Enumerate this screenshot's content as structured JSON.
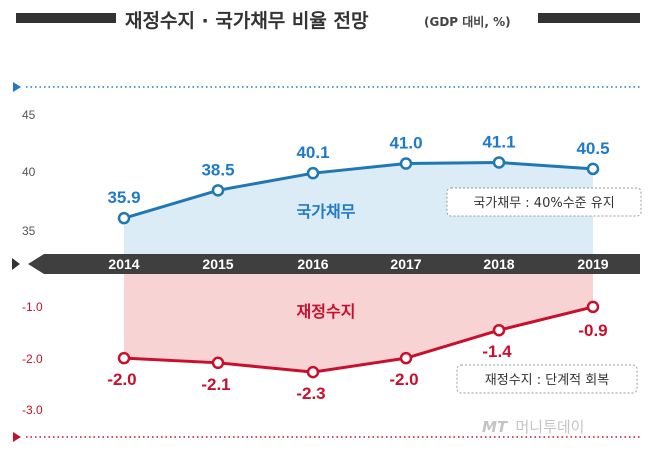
{
  "header": {
    "title": "재정수지 · 국가채무 비율 전망",
    "unit": "(GDP 대비, %)"
  },
  "watermark": {
    "brand": "MT",
    "name": "머니투데이"
  },
  "colors": {
    "debt_line": "#1f77b4",
    "debt_fill": "#dcecf7",
    "deficit_line": "#c8102e",
    "deficit_fill": "#f8d3d3",
    "band": "#3f3f3f",
    "accent_blue": "#1f7ac8",
    "accent_red": "#c8102e"
  },
  "chart_data": [
    {
      "type": "line",
      "title": "국가채무",
      "categories": [
        "2014",
        "2015",
        "2016",
        "2017",
        "2018",
        "2019"
      ],
      "values": [
        35.9,
        38.5,
        40.1,
        41.0,
        41.1,
        40.5
      ],
      "value_labels": [
        "35.9",
        "38.5",
        "40.1",
        "41.0",
        "41.1",
        "40.5"
      ],
      "y_ticks": [
        "45",
        "40",
        "35"
      ],
      "ylim": [
        33.3,
        46.0
      ],
      "note": "국가채무 : 40%수준 유지"
    },
    {
      "type": "line",
      "title": "재정수지",
      "categories": [
        "2014",
        "2015",
        "2016",
        "2017",
        "2018",
        "2019"
      ],
      "values": [
        -2.0,
        -2.1,
        -2.3,
        -2.0,
        -1.4,
        -0.9
      ],
      "value_labels": [
        "-2.0",
        "-2.1",
        "-2.3",
        "-2.0",
        "-1.4",
        "-0.9"
      ],
      "y_ticks": [
        "-1.0",
        "-2.0",
        "-3.0"
      ],
      "ylim": [
        -3.07,
        -0.58
      ],
      "note": "재정수지 : 단계적 회복"
    }
  ]
}
